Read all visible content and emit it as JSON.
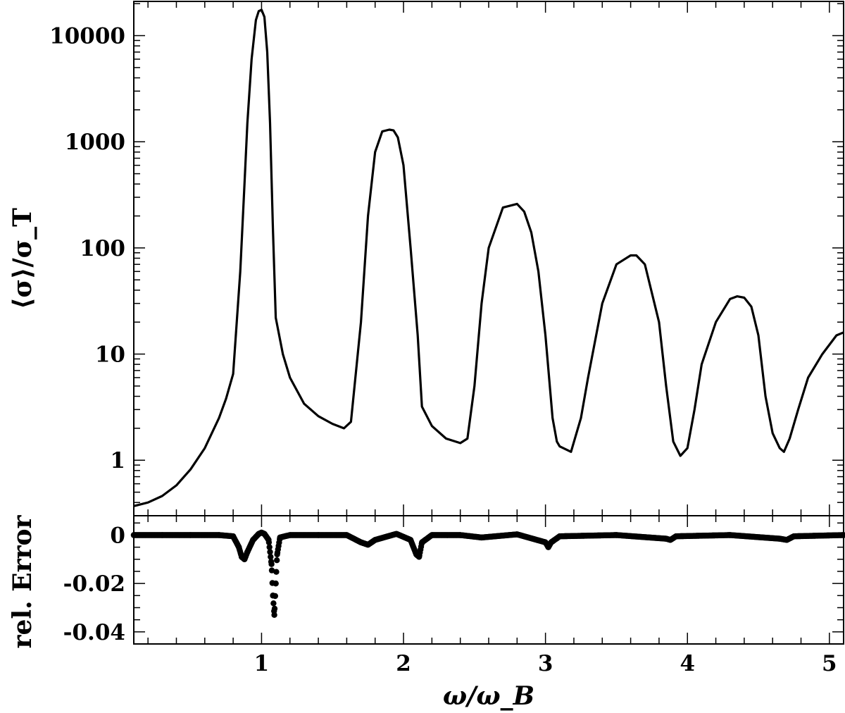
{
  "chart_data": [
    {
      "panel": "main",
      "type": "line",
      "title": "",
      "xlabel": "ω/ω_B",
      "ylabel": "⟨σ⟩/σ_T",
      "yscale": "log",
      "xlim": [
        0.1,
        5.1
      ],
      "ylim": [
        0.3,
        21000
      ],
      "grid": false,
      "legend": "none",
      "y_tick_labels": [
        "1",
        "10",
        "100",
        "1000",
        "10000"
      ],
      "y_tick_values": [
        1,
        10,
        100,
        1000,
        10000
      ],
      "series": [
        {
          "x": [
            0.1,
            0.2,
            0.3,
            0.4,
            0.5,
            0.6,
            0.7,
            0.75,
            0.8,
            0.85,
            0.88,
            0.9,
            0.93,
            0.96,
            0.98,
            1.0,
            1.02,
            1.04,
            1.06,
            1.08,
            1.1,
            1.15,
            1.2,
            1.3,
            1.4,
            1.5,
            1.58,
            1.63,
            1.7,
            1.75,
            1.8,
            1.85,
            1.9,
            1.93,
            1.96,
            2.0,
            2.05,
            2.1,
            2.13,
            2.2,
            2.3,
            2.4,
            2.45,
            2.5,
            2.55,
            2.6,
            2.7,
            2.8,
            2.85,
            2.9,
            2.95,
            3.0,
            3.05,
            3.08,
            3.1,
            3.18,
            3.25,
            3.3,
            3.4,
            3.5,
            3.6,
            3.64,
            3.7,
            3.8,
            3.85,
            3.9,
            3.95,
            4.0,
            4.05,
            4.1,
            4.2,
            4.3,
            4.35,
            4.4,
            4.45,
            4.5,
            4.55,
            4.6,
            4.65,
            4.68,
            4.72,
            4.78,
            4.85,
            4.95,
            5.05,
            5.1
          ],
          "y": [
            0.37,
            0.4,
            0.46,
            0.58,
            0.82,
            1.3,
            2.5,
            3.8,
            6.5,
            60,
            400,
            1500,
            6000,
            14000,
            17000,
            17500,
            15000,
            7000,
            1500,
            150,
            22,
            10,
            6,
            3.4,
            2.6,
            2.2,
            2.0,
            2.3,
            20,
            200,
            800,
            1250,
            1300,
            1280,
            1100,
            600,
            100,
            15,
            3.2,
            2.1,
            1.6,
            1.45,
            1.6,
            5,
            30,
            100,
            240,
            260,
            220,
            140,
            60,
            15,
            2.5,
            1.5,
            1.35,
            1.2,
            2.5,
            6,
            30,
            70,
            85,
            85,
            70,
            20,
            5,
            1.5,
            1.1,
            1.3,
            3,
            8,
            20,
            33,
            35,
            34,
            28,
            15,
            4,
            1.8,
            1.3,
            1.2,
            1.6,
            3,
            6,
            10,
            15,
            16
          ]
        }
      ]
    },
    {
      "panel": "residual",
      "type": "scatter",
      "title": "",
      "xlabel": "ω/ω_B",
      "ylabel": "rel. Error",
      "xlim": [
        0.1,
        5.1
      ],
      "ylim": [
        -0.045,
        0.008
      ],
      "grid": false,
      "legend": "none",
      "x_tick_labels": [
        "1",
        "2",
        "3",
        "4",
        "5"
      ],
      "x_tick_values": [
        1,
        2,
        3,
        4,
        5
      ],
      "y_tick_labels": [
        "0",
        "-0.02",
        "-0.04"
      ],
      "y_tick_values": [
        0,
        -0.02,
        -0.04
      ],
      "series": [
        {
          "x": [
            0.1,
            0.3,
            0.5,
            0.7,
            0.8,
            0.84,
            0.86,
            0.88,
            0.9,
            0.94,
            0.98,
            1.0,
            1.02,
            1.05,
            1.07,
            1.08,
            1.09,
            1.1,
            1.11,
            1.13,
            1.2,
            1.4,
            1.6,
            1.7,
            1.75,
            1.8,
            1.95,
            2.05,
            2.09,
            2.11,
            2.13,
            2.2,
            2.4,
            2.55,
            2.8,
            3.0,
            3.02,
            3.04,
            3.1,
            3.5,
            3.85,
            3.88,
            3.92,
            4.3,
            4.65,
            4.7,
            4.75,
            5.1
          ],
          "y": [
            0,
            0,
            0,
            0,
            -0.0005,
            -0.005,
            -0.009,
            -0.01,
            -0.007,
            -0.002,
            0.0005,
            0.001,
            0.0005,
            -0.002,
            -0.012,
            -0.025,
            -0.033,
            -0.02,
            -0.008,
            -0.001,
            0,
            0,
            0,
            -0.003,
            -0.004,
            -0.002,
            0.0005,
            -0.002,
            -0.008,
            -0.009,
            -0.003,
            0,
            0,
            -0.001,
            0.0003,
            -0.003,
            -0.005,
            -0.003,
            -0.0005,
            0,
            -0.0015,
            -0.002,
            -0.0005,
            0,
            -0.0015,
            -0.002,
            -0.0005,
            0
          ]
        }
      ]
    }
  ]
}
